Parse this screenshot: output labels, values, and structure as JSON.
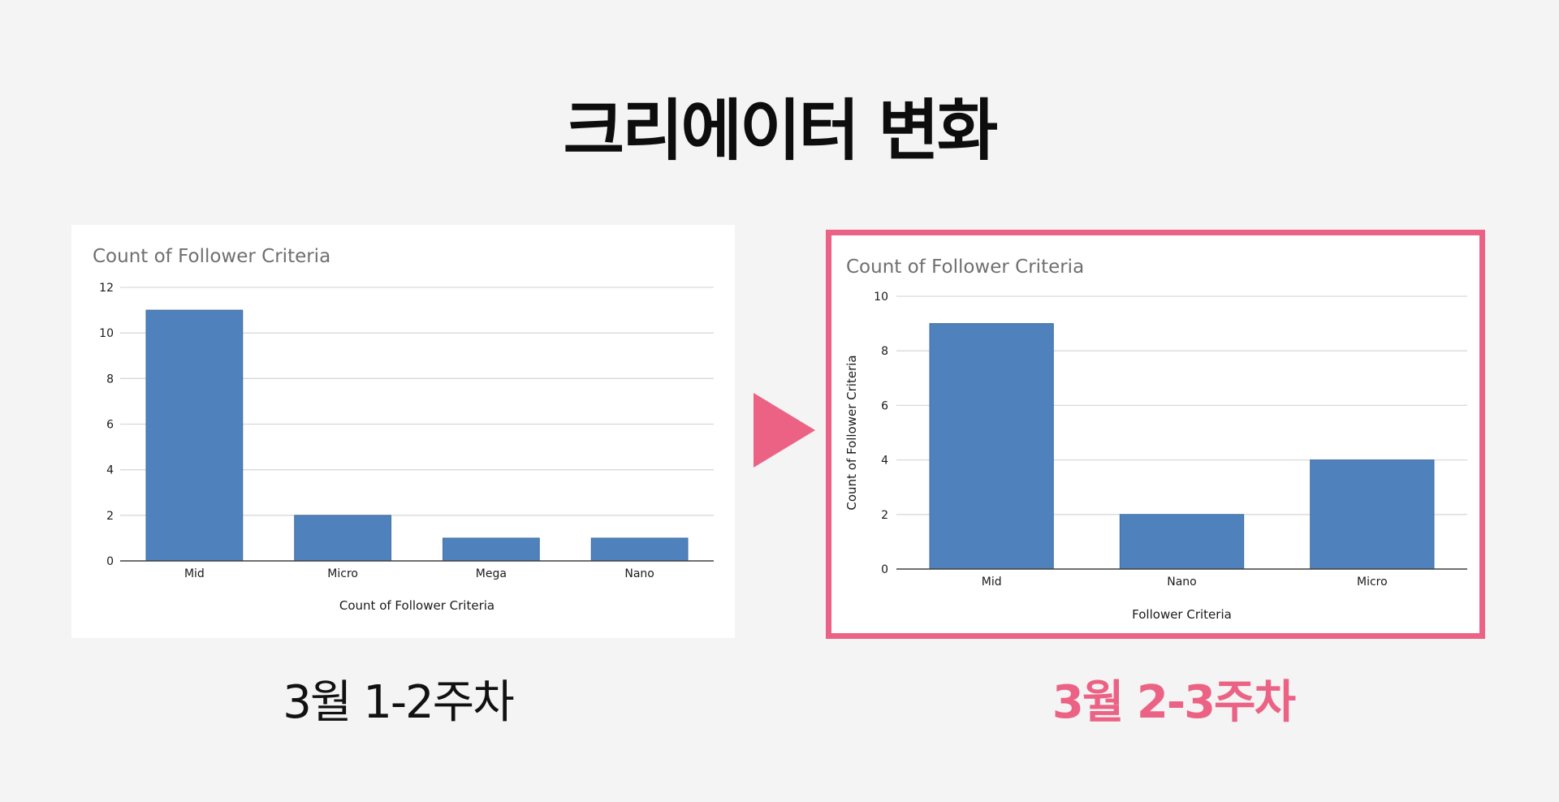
{
  "page": {
    "title": "크리에이터 변화",
    "left_caption": "3월 1-2주차",
    "right_caption": "3월 2-3주차",
    "accent_color": "#ec6285",
    "bar_color": "#4f81bd"
  },
  "chart_data": [
    {
      "type": "bar",
      "title": "Count of Follower Criteria",
      "categories": [
        "Mid",
        "Micro",
        "Mega",
        "Nano"
      ],
      "values": [
        11,
        2,
        1,
        1
      ],
      "xlabel": "Count of Follower Criteria",
      "ylabel": "",
      "ylim": [
        0,
        12
      ],
      "yticks": [
        0,
        2,
        4,
        6,
        8,
        10,
        12
      ],
      "grid": true,
      "legend": "none"
    },
    {
      "type": "bar",
      "title": "Count of Follower Criteria",
      "categories": [
        "Mid",
        "Nano",
        "Micro"
      ],
      "values": [
        9,
        2,
        4
      ],
      "xlabel": "Follower Criteria",
      "ylabel": "Count of Follower Criteria",
      "ylim": [
        0,
        10
      ],
      "yticks": [
        0,
        2,
        4,
        6,
        8,
        10
      ],
      "grid": true,
      "legend": "none"
    }
  ]
}
